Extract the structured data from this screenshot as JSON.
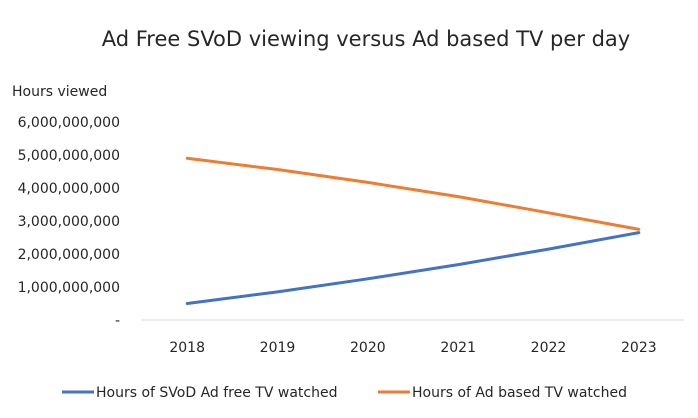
{
  "chart_data": {
    "type": "line",
    "title": "Ad Free SVoD viewing versus Ad based TV per day",
    "xlabel": "",
    "ylabel": "Hours viewed",
    "x": [
      "2018",
      "2019",
      "2020",
      "2021",
      "2022",
      "2023"
    ],
    "y_ticks": [
      "-",
      "1,000,000,000",
      "2,000,000,000",
      "3,000,000,000",
      "4,000,000,000",
      "5,000,000,000",
      "6,000,000,000"
    ],
    "ylim": [
      0,
      6000000000
    ],
    "grid": false,
    "legend_position": "bottom",
    "series": [
      {
        "name": "Hours of SVoD Ad free TV watched",
        "color": "#4472C4",
        "values": [
          500000000,
          850000000,
          1250000000,
          1680000000,
          2150000000,
          2650000000
        ]
      },
      {
        "name": "Hours of Ad based TV watched",
        "color": "#ED7D31",
        "values": [
          4900000000,
          4560000000,
          4170000000,
          3740000000,
          3250000000,
          2750000000
        ]
      }
    ]
  }
}
